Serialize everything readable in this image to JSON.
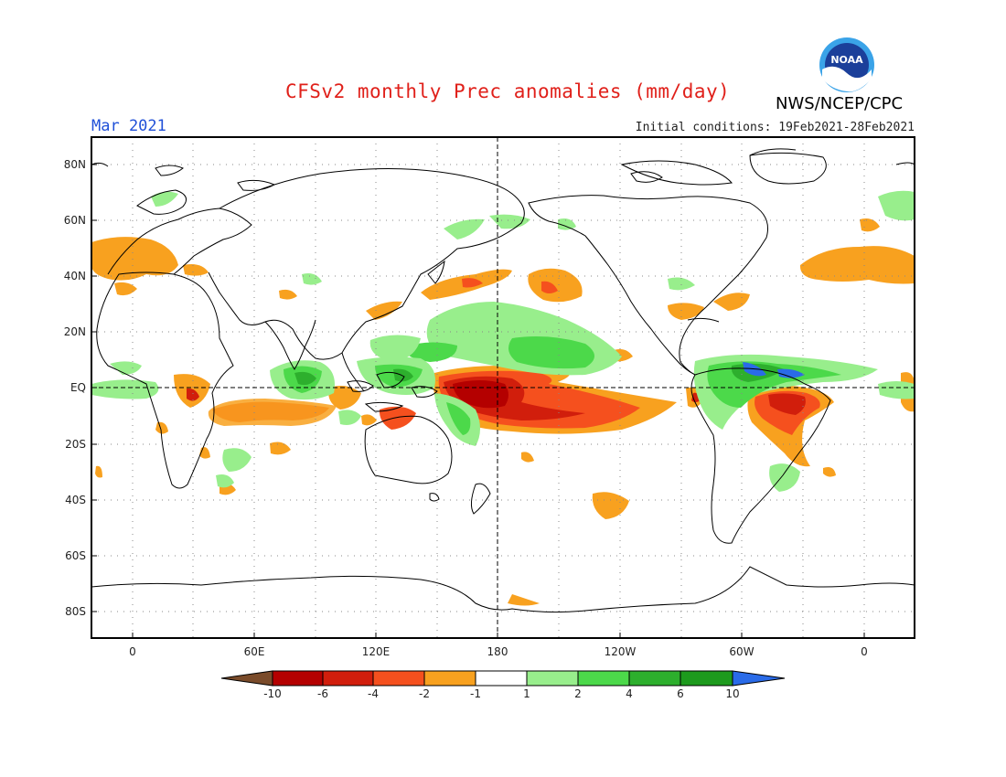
{
  "header": {
    "title": "CFSv2 monthly Prec anomalies (mm/day)",
    "month": "Mar 2021",
    "initial_conditions": "Initial conditions: 19Feb2021-28Feb2021",
    "agency": "NWS/NCEP/CPC",
    "logo_text": "NOAA"
  },
  "axes": {
    "lat_labels": [
      "80N",
      "60N",
      "40N",
      "20N",
      "EQ",
      "20S",
      "40S",
      "60S",
      "80S"
    ],
    "lat_values": [
      80,
      60,
      40,
      20,
      0,
      -20,
      -40,
      -60,
      -80
    ],
    "lon_labels": [
      "0",
      "60E",
      "120E",
      "180",
      "120W",
      "60W",
      "0"
    ],
    "lon_values": [
      0,
      60,
      120,
      180,
      240,
      300,
      360
    ]
  },
  "colorbar": {
    "labels": [
      "-10",
      "-6",
      "-4",
      "-2",
      "-1",
      "1",
      "2",
      "4",
      "6",
      "10"
    ],
    "colors": [
      "#7a4b2a",
      "#b40000",
      "#d11e0c",
      "#f5501e",
      "#f8a11f",
      "#ffffff",
      "#98ee8c",
      "#4cd94a",
      "#2daf2d",
      "#1d9a1d",
      "#2a6be8"
    ]
  },
  "anomaly_colors": {
    "dry_light": "#f8a11f",
    "dry_mid": "#f5501e",
    "dry_strong": "#d11e0c",
    "dry_extreme": "#b40000",
    "wet_light": "#98ee8c",
    "wet_mid": "#4cd94a",
    "wet_strong": "#2daf2d",
    "wet_extreme": "#2a6be8"
  }
}
